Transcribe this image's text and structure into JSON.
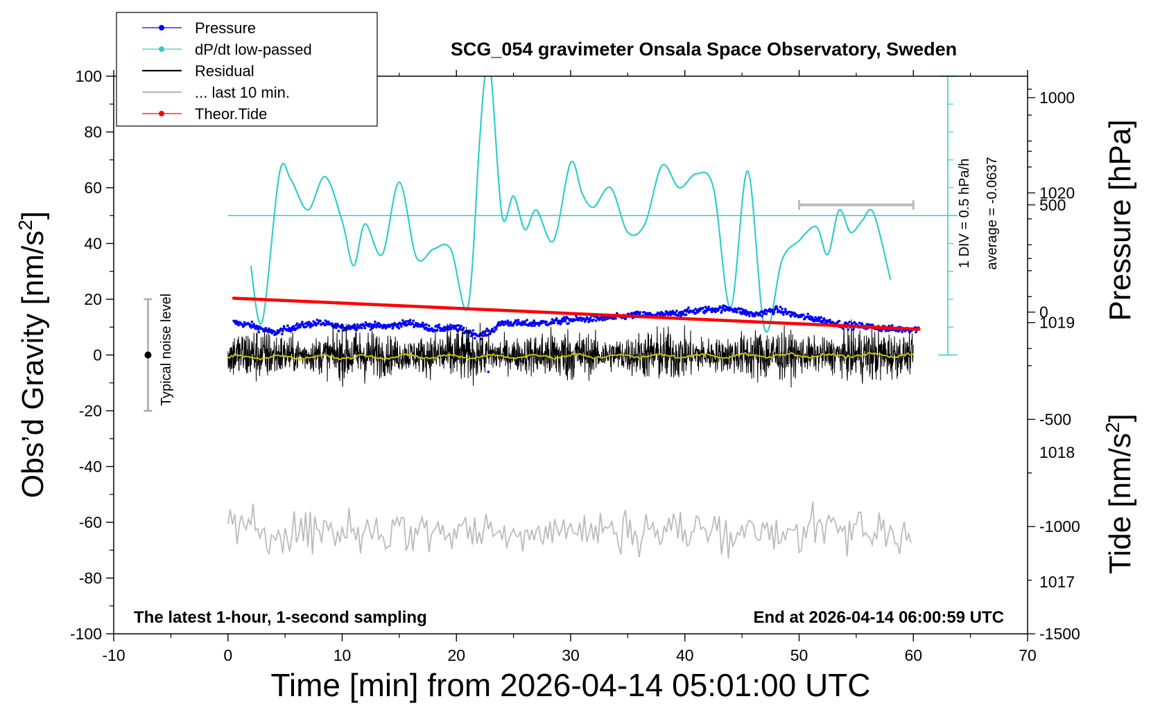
{
  "chart_data": {
    "type": "line",
    "title": "SCG_054 gravimeter Onsala Space Observatory, Sweden",
    "xlabel": "Time [min] from 2026-04-14 05:01:00 UTC",
    "ylabel_left_main": "Obs’d Gravity [nm/s",
    "ylabel_left_sup": "2",
    "ylabel_left_end": "]",
    "ylabel_right_pressure": "Pressure [hPa]",
    "ylabel_right_tide_main": "Tide [nm/s",
    "ylabel_right_tide_sup": "2",
    "ylabel_right_tide_end": "]",
    "xlim": [
      -10,
      70
    ],
    "ylim": [
      -100,
      100
    ],
    "pressure_lim": [
      1016.6,
      1020.9
    ],
    "tide_lim": [
      -1500,
      1100
    ],
    "x_ticks": [
      -10,
      0,
      10,
      20,
      30,
      40,
      50,
      60,
      70
    ],
    "y_ticks": [
      -100,
      -80,
      -60,
      -40,
      -20,
      0,
      20,
      40,
      60,
      80,
      100
    ],
    "pressure_ticks": [
      1017,
      1018,
      1019,
      1020
    ],
    "tide_ticks": [
      -1500,
      -1000,
      -500,
      0,
      500,
      1000
    ],
    "x_tick_labels": [
      "-10",
      "0",
      "10",
      "20",
      "30",
      "40",
      "50",
      "60",
      "70"
    ],
    "y_tick_labels": [
      "-100",
      "-80",
      "-60",
      "-40",
      "-20",
      "0",
      "20",
      "40",
      "60",
      "80",
      "100"
    ],
    "pressure_tick_labels": [
      "1017",
      "1018",
      "1019",
      "1020"
    ],
    "tide_tick_labels": [
      "-1500",
      "-1000",
      "-500",
      "0",
      "500",
      "1000"
    ],
    "legend": {
      "position": "top-left",
      "entries": [
        {
          "label": "Pressure",
          "color": "#0000ff",
          "marker": "dot"
        },
        {
          "label": "dP/dt low-passed",
          "color": "#33cccc",
          "marker": "dot"
        },
        {
          "label": "Residual",
          "color": "#000000",
          "marker": "none"
        },
        {
          "label": "... last 10 min.",
          "color": "#bbbbbb",
          "marker": "none"
        },
        {
          "label": "Theor.Tide",
          "color": "#ff0000",
          "marker": "dot"
        }
      ]
    },
    "annotations": {
      "bottom_left": "The latest 1-hour, 1-second sampling",
      "bottom_right": "End at 2026-04-14 06:00:59 UTC",
      "noise_label": "Typical noise level",
      "noise_range": [
        -20,
        20
      ],
      "div_label": "1 DIV = 0.5 hPa/h",
      "average_label": "average = -0.0637",
      "last10_bar_x": [
        50,
        60
      ],
      "last10_bar_tide": 500
    },
    "colors": {
      "pressure": "#0000ff",
      "dpdt": "#33cccc",
      "residual": "#000000",
      "residual_smooth": "#c8c800",
      "last10": "#bbbbbb",
      "tide": "#ff0000"
    },
    "series": [
      {
        "name": "Pressure",
        "axis": "pressure",
        "x": [
          0.5,
          2,
          4,
          6,
          8,
          10,
          12,
          14,
          16,
          18,
          20,
          22,
          23,
          24,
          26,
          28,
          30,
          32,
          34,
          36,
          38,
          40,
          42,
          44,
          46,
          48,
          50,
          52,
          54,
          56,
          58,
          60.5
        ],
        "y": [
          1019.0,
          1018.98,
          1018.92,
          1018.97,
          1019.0,
          1018.96,
          1018.98,
          1018.97,
          1019.0,
          1018.95,
          1018.96,
          1018.9,
          1018.93,
          1019.0,
          1018.99,
          1019.0,
          1019.02,
          1019.03,
          1019.04,
          1019.06,
          1019.06,
          1019.08,
          1019.1,
          1019.11,
          1019.06,
          1019.1,
          1019.05,
          1019.02,
          1018.98,
          1018.97,
          1018.95,
          1018.95
        ]
      },
      {
        "name": "dP/dt low-passed",
        "axis": "left",
        "x": [
          2,
          3,
          4.5,
          5.5,
          7,
          8.5,
          10,
          11,
          12,
          13.5,
          15,
          16.5,
          18,
          19.5,
          21,
          22,
          22.5,
          23,
          24,
          25,
          26,
          27,
          28.5,
          30,
          31,
          32,
          33.5,
          35,
          36.5,
          38,
          39.5,
          41,
          42.5,
          44,
          45.5,
          47,
          48.5,
          50,
          51.5,
          52.5,
          53.5,
          54.5,
          55.5,
          56.5,
          58
        ],
        "y": [
          32,
          12,
          65,
          63,
          52,
          64,
          48,
          32,
          47,
          36,
          62,
          35,
          38,
          38,
          17,
          75,
          100,
          102,
          50,
          57,
          45,
          52,
          41,
          69,
          58,
          53,
          60,
          44,
          47,
          68,
          60,
          65,
          60,
          17,
          66,
          9,
          34,
          41,
          46,
          36,
          52,
          44,
          48,
          51,
          27
        ]
      },
      {
        "name": "Theor.Tide",
        "axis": "tide",
        "x": [
          0.5,
          60.5
        ],
        "y": [
          65,
          -80
        ]
      }
    ],
    "residual": {
      "name": "Residual",
      "x_range": [
        0,
        60
      ],
      "amplitude": 10,
      "center": 0
    },
    "last10": {
      "name": "... last 10 min.",
      "x_range": [
        0,
        60
      ],
      "center": -63,
      "amplitude": 6
    }
  }
}
